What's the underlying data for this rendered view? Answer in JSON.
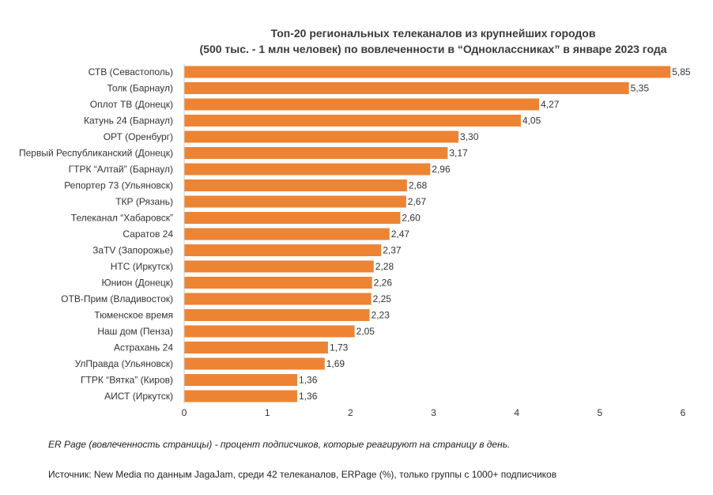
{
  "chart_data": {
    "type": "bar",
    "orientation": "horizontal",
    "title_line1": "Топ-20 региональных телеканалов из крупнейших городов",
    "title_line2": "(500 тыс. - 1 млн человек) по вовлеченности в “Одноклассниках” в январе 2023 года",
    "categories": [
      "СТВ (Севастополь)",
      "Толк (Барнаул)",
      "Оплот ТВ (Донецк)",
      "Катунь 24 (Барнаул)",
      "ОРТ (Оренбург)",
      "Первый Республиканский (Донецк)",
      "ГТРК “Алтай” (Барнаул)",
      "Репортер 73 (Ульяновск)",
      "ТКР (Рязань)",
      "Телеканал “Хабаровск”",
      "Саратов 24",
      "ЗаTV (Запорожье)",
      "НТС (Иркутск)",
      "Юнион (Донецк)",
      "ОТВ-Прим (Владивосток)",
      "Тюменское время",
      "Наш дом (Пенза)",
      "Астрахань 24",
      "УлПравда (Ульяновск)",
      "ГТРК “Вятка” (Киров)",
      "АИСТ (Иркутск)"
    ],
    "values": [
      5.85,
      5.35,
      4.27,
      4.05,
      3.3,
      3.17,
      2.96,
      2.68,
      2.67,
      2.6,
      2.47,
      2.37,
      2.28,
      2.26,
      2.25,
      2.23,
      2.05,
      1.73,
      1.69,
      1.36,
      1.36
    ],
    "value_labels": [
      "5,85",
      "5,35",
      "4,27",
      "4,05",
      "3,30",
      "3,17",
      "2,96",
      "2,68",
      "2,67",
      "2,60",
      "2,47",
      "2,37",
      "2,28",
      "2,26",
      "2,25",
      "2,23",
      "2,05",
      "1,73",
      "1,69",
      "1,36",
      "1,36"
    ],
    "xlim": [
      0,
      6
    ],
    "x_ticks": [
      "0",
      "1",
      "2",
      "3",
      "4",
      "5",
      "6"
    ],
    "grid": false,
    "bar_color": "#ed8434",
    "xlabel": "",
    "ylabel": ""
  },
  "footnote": "ER Page (вовлеченность страницы) - процент подписчиков, которые реагируют на страницу в день.",
  "source": "Источник: New Media по данным JagaJam, среди 42 телеканалов, ERPage (%), только группы с 1000+ подписчиков"
}
